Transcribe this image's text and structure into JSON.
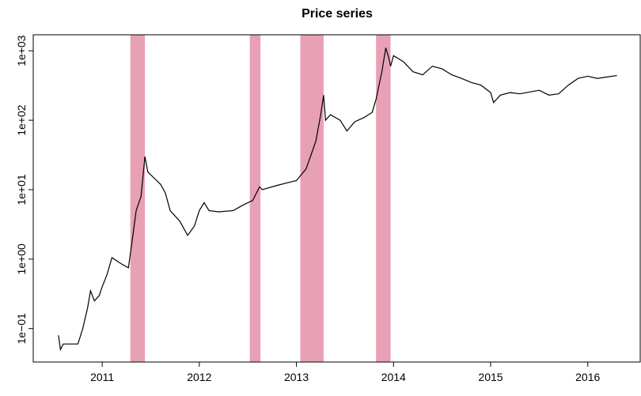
{
  "chart_data": {
    "type": "line",
    "title": "Price series",
    "log_scale_y": true,
    "xlim": [
      2010.29,
      2016.54
    ],
    "xticks": [
      2011,
      2012,
      2013,
      2014,
      2015,
      2016
    ],
    "ylim": [
      0.033,
      1700
    ],
    "yticks": [
      {
        "value": 0.1,
        "label": "1e−01"
      },
      {
        "value": 1,
        "label": "1e+00"
      },
      {
        "value": 10,
        "label": "1e+01"
      },
      {
        "value": 100,
        "label": "1e+02"
      },
      {
        "value": 1000,
        "label": "1e+03"
      }
    ],
    "shaded_color": "#e8a0b4",
    "shaded_regions": [
      {
        "start": 2011.29,
        "end": 2011.44
      },
      {
        "start": 2012.52,
        "end": 2012.63
      },
      {
        "start": 2013.04,
        "end": 2013.28
      },
      {
        "start": 2013.82,
        "end": 2013.97
      }
    ],
    "x": [
      2010.55,
      2010.57,
      2010.6,
      2010.75,
      2010.8,
      2010.85,
      2010.88,
      2010.92,
      2010.97,
      2011.0,
      2011.05,
      2011.1,
      2011.2,
      2011.27,
      2011.3,
      2011.35,
      2011.4,
      2011.44,
      2011.47,
      2011.55,
      2011.6,
      2011.65,
      2011.7,
      2011.8,
      2011.88,
      2011.95,
      2012.0,
      2012.05,
      2012.1,
      2012.2,
      2012.35,
      2012.45,
      2012.55,
      2012.62,
      2012.65,
      2012.7,
      2012.8,
      2012.9,
      2013.0,
      2013.1,
      2013.2,
      2013.25,
      2013.28,
      2013.3,
      2013.35,
      2013.45,
      2013.52,
      2013.6,
      2013.7,
      2013.78,
      2013.82,
      2013.88,
      2013.92,
      2013.95,
      2013.97,
      2014.0,
      2014.1,
      2014.2,
      2014.3,
      2014.4,
      2014.5,
      2014.6,
      2014.7,
      2014.8,
      2014.9,
      2015.0,
      2015.03,
      2015.1,
      2015.2,
      2015.3,
      2015.5,
      2015.6,
      2015.7,
      2015.8,
      2015.9,
      2016.0,
      2016.1,
      2016.2,
      2016.3
    ],
    "series": [
      {
        "color": "#000000",
        "values": [
          0.08,
          0.05,
          0.06,
          0.06,
          0.1,
          0.2,
          0.35,
          0.25,
          0.3,
          0.4,
          0.6,
          1.05,
          0.85,
          0.75,
          1.5,
          5,
          8,
          30,
          18,
          14,
          12,
          9,
          5,
          3.5,
          2.2,
          3,
          5,
          6.5,
          5,
          4.8,
          5,
          6,
          7,
          11,
          10,
          10.5,
          11.5,
          12.5,
          13.5,
          20,
          50,
          120,
          230,
          100,
          120,
          100,
          70,
          95,
          110,
          130,
          200,
          500,
          1100,
          800,
          600,
          850,
          700,
          500,
          450,
          600,
          550,
          450,
          400,
          350,
          320,
          250,
          180,
          230,
          250,
          240,
          270,
          230,
          240,
          320,
          400,
          430,
          400,
          420,
          440
        ]
      }
    ]
  }
}
